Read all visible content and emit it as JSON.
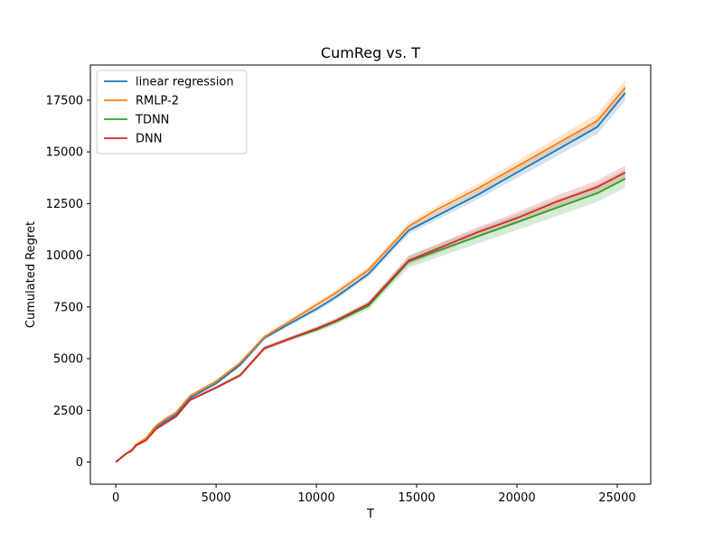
{
  "chart_data": {
    "type": "line",
    "title": "CumReg vs. T",
    "xlabel": "T",
    "ylabel": "Cumulated Regret",
    "xlim": [
      -1270,
      26670
    ],
    "ylim": [
      -1070,
      19200
    ],
    "xticks": [
      0,
      5000,
      10000,
      15000,
      20000,
      25000
    ],
    "xtick_labels": [
      "0",
      "5000",
      "10000",
      "15000",
      "20000",
      "25000"
    ],
    "yticks": [
      0,
      2500,
      5000,
      7500,
      10000,
      12500,
      15000,
      17500
    ],
    "ytick_labels": [
      "0",
      "2500",
      "5000",
      "7500",
      "10000",
      "12500",
      "15000",
      "17500"
    ],
    "grid": false,
    "legend_position": "top-left",
    "series": [
      {
        "name": "linear regression",
        "color": "#1f77b4",
        "x": [
          0,
          500,
          800,
          1000,
          1500,
          2000,
          2500,
          3000,
          3700,
          5000,
          6200,
          7400,
          8500,
          10000,
          11000,
          12600,
          14600,
          16000,
          18000,
          20000,
          22000,
          24000,
          25400
        ],
        "y": [
          0,
          400,
          600,
          800,
          1100,
          1700,
          2000,
          2300,
          3100,
          3800,
          4700,
          6000,
          6600,
          7400,
          8000,
          9100,
          11200,
          11900,
          12900,
          14000,
          15100,
          16200,
          17850
        ],
        "band": [
          0,
          0,
          20,
          20,
          30,
          40,
          40,
          50,
          60,
          70,
          80,
          100,
          100,
          120,
          130,
          150,
          180,
          200,
          220,
          260,
          300,
          340,
          380
        ]
      },
      {
        "name": "RMLP-2",
        "color": "#ff7f0e",
        "x": [
          0,
          500,
          800,
          1000,
          1500,
          2000,
          2500,
          3000,
          3700,
          5000,
          6200,
          7400,
          8500,
          10000,
          11000,
          12600,
          14600,
          16000,
          18000,
          20000,
          22000,
          24000,
          25400
        ],
        "y": [
          0,
          400,
          600,
          850,
          1150,
          1750,
          2100,
          2400,
          3200,
          3900,
          4800,
          6050,
          6700,
          7600,
          8200,
          9300,
          11400,
          12200,
          13200,
          14300,
          15400,
          16500,
          18100
        ],
        "band": [
          0,
          0,
          20,
          20,
          30,
          40,
          40,
          50,
          60,
          70,
          80,
          100,
          100,
          120,
          130,
          150,
          180,
          200,
          220,
          260,
          300,
          340,
          380
        ]
      },
      {
        "name": "TDNN",
        "color": "#2ca02c",
        "x": [
          0,
          500,
          800,
          1000,
          1500,
          2000,
          2500,
          3000,
          3700,
          5000,
          6200,
          7400,
          8500,
          10000,
          11000,
          12600,
          14600,
          16000,
          18000,
          20000,
          22000,
          24000,
          25400
        ],
        "y": [
          0,
          400,
          550,
          800,
          1050,
          1600,
          1900,
          2200,
          3000,
          3600,
          4200,
          5500,
          5900,
          6400,
          6800,
          7550,
          9700,
          10200,
          10900,
          11600,
          12300,
          13000,
          13700
        ],
        "band": [
          0,
          0,
          20,
          20,
          30,
          40,
          40,
          50,
          60,
          70,
          80,
          100,
          100,
          120,
          140,
          180,
          300,
          320,
          350,
          380,
          400,
          420,
          440
        ]
      },
      {
        "name": "DNN",
        "color": "#d62728",
        "x": [
          0,
          500,
          800,
          1000,
          1500,
          2000,
          2500,
          3000,
          3700,
          5000,
          6200,
          7400,
          8500,
          10000,
          11000,
          12600,
          14600,
          16000,
          18000,
          20000,
          22000,
          24000,
          25400
        ],
        "y": [
          0,
          400,
          550,
          800,
          1050,
          1600,
          1900,
          2200,
          3000,
          3600,
          4200,
          5500,
          5900,
          6450,
          6850,
          7650,
          9750,
          10300,
          11100,
          11800,
          12600,
          13300,
          14000
        ],
        "band": [
          0,
          0,
          20,
          20,
          30,
          40,
          40,
          50,
          60,
          70,
          80,
          100,
          100,
          110,
          120,
          140,
          200,
          220,
          250,
          280,
          300,
          320,
          340
        ]
      }
    ]
  }
}
